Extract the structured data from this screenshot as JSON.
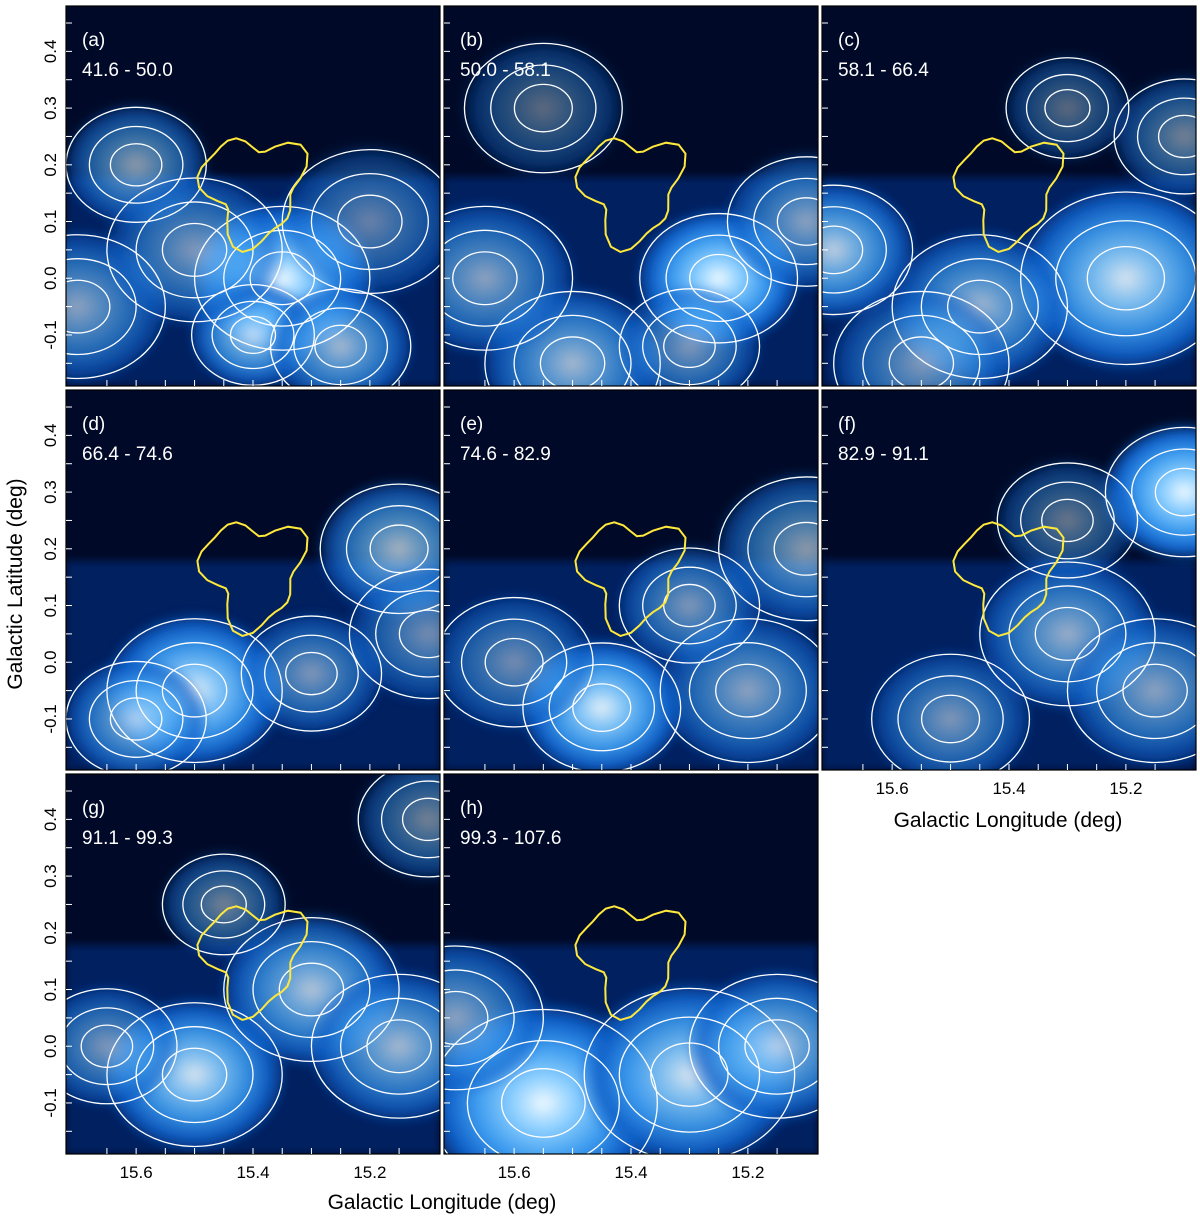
{
  "chart_data": {
    "type": "heatmap",
    "xlabel": "Galactic Longitude (deg)",
    "ylabel": "Galactic Latitude (deg)",
    "xlim": [
      15.72,
      15.08
    ],
    "ylim": [
      -0.19,
      0.48
    ],
    "xticks": [
      15.6,
      15.4,
      15.2
    ],
    "xtick_labels": [
      "15.6",
      "15.4",
      "15.2"
    ],
    "yticks": [
      -0.1,
      0.0,
      0.1,
      0.2,
      0.3,
      0.4
    ],
    "ytick_labels": [
      "-0.1",
      "0.0",
      "0.1",
      "0.2",
      "0.3",
      "0.4"
    ],
    "colormap": [
      "#000a28",
      "#062a78",
      "#1060c8",
      "#3c9bee",
      "#8ed0ff",
      "#eef9ff"
    ],
    "contour_color": "#ffffff",
    "overlay_color": "#ffe83c",
    "panels": [
      {
        "label": "(a)",
        "range": "41.6 - 50.0"
      },
      {
        "label": "(b)",
        "range": "50.0 - 58.1"
      },
      {
        "label": "(c)",
        "range": "58.1 - 66.4"
      },
      {
        "label": "(d)",
        "range": "66.4 - 74.6"
      },
      {
        "label": "(e)",
        "range": "74.6 - 82.9"
      },
      {
        "label": "(f)",
        "range": "82.9 - 91.1"
      },
      {
        "label": "(g)",
        "range": "91.1 - 99.3"
      },
      {
        "label": "(h)",
        "range": "99.3 - 107.6"
      }
    ]
  }
}
